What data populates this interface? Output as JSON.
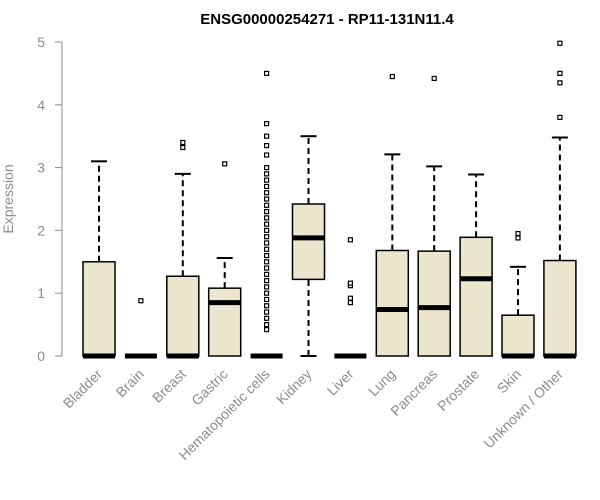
{
  "chart_data": {
    "type": "boxplot",
    "title": "ENSG00000254271 - RP11-131N11.4",
    "ylabel": "Expression",
    "xlabel": "",
    "ylim": [
      0,
      5
    ],
    "yticks": [
      0,
      1,
      2,
      3,
      4,
      5
    ],
    "grid": false,
    "colors": {
      "box_fill": "#ede6cf",
      "stroke": "#000000",
      "axis": "#8c8c8c"
    },
    "categories": [
      "Bladder",
      "Brain",
      "Breast",
      "Gastric",
      "Hematopoietic cells",
      "Kidney",
      "Liver",
      "Lung",
      "Pancreas",
      "Prostate",
      "Skin",
      "Unknown / Other"
    ],
    "boxes": [
      {
        "category": "Bladder",
        "min": 0,
        "q1": 0,
        "median": 0,
        "q3": 1.5,
        "max": 3.1,
        "outliers": []
      },
      {
        "category": "Brain",
        "min": 0,
        "q1": 0,
        "median": 0,
        "q3": 0,
        "max": 0,
        "outliers": [
          0.88
        ]
      },
      {
        "category": "Breast",
        "min": 0,
        "q1": 0,
        "median": 0,
        "q3": 1.27,
        "max": 2.9,
        "outliers": [
          3.32,
          3.4
        ]
      },
      {
        "category": "Gastric",
        "min": 0,
        "q1": 0,
        "median": 0.85,
        "q3": 1.08,
        "max": 1.56,
        "outliers": [
          3.06
        ]
      },
      {
        "category": "Hematopoietic cells",
        "min": 0,
        "q1": 0,
        "median": 0,
        "q3": 0,
        "max": 0,
        "outliers": [
          0.42,
          0.5,
          0.6,
          0.7,
          0.8,
          0.9,
          1.0,
          1.1,
          1.2,
          1.3,
          1.4,
          1.5,
          1.6,
          1.7,
          1.8,
          1.9,
          2.0,
          2.1,
          2.2,
          2.3,
          2.4,
          2.5,
          2.6,
          2.7,
          2.8,
          2.9,
          3.0,
          3.2,
          3.35,
          3.5,
          3.7,
          4.5
        ]
      },
      {
        "category": "Kidney",
        "min": 0,
        "q1": 1.22,
        "median": 1.88,
        "q3": 2.42,
        "max": 3.5,
        "outliers": []
      },
      {
        "category": "Liver",
        "min": 0,
        "q1": 0,
        "median": 0,
        "q3": 0,
        "max": 0,
        "outliers": [
          0.85,
          0.92,
          1.12,
          1.16,
          1.85
        ]
      },
      {
        "category": "Lung",
        "min": 0,
        "q1": 0,
        "median": 0.74,
        "q3": 1.68,
        "max": 3.21,
        "outliers": [
          4.45
        ]
      },
      {
        "category": "Pancreas",
        "min": 0,
        "q1": 0,
        "median": 0.77,
        "q3": 1.67,
        "max": 3.02,
        "outliers": [
          4.42
        ]
      },
      {
        "category": "Prostate",
        "min": 0,
        "q1": 0,
        "median": 1.23,
        "q3": 1.89,
        "max": 2.89,
        "outliers": []
      },
      {
        "category": "Skin",
        "min": 0,
        "q1": 0,
        "median": 0,
        "q3": 0.65,
        "max": 1.42,
        "outliers": [
          1.88,
          1.95
        ]
      },
      {
        "category": "Unknown / Other",
        "min": 0,
        "q1": 0,
        "median": 0,
        "q3": 1.52,
        "max": 3.48,
        "outliers": [
          3.8,
          4.35,
          4.5,
          4.98
        ]
      }
    ]
  }
}
